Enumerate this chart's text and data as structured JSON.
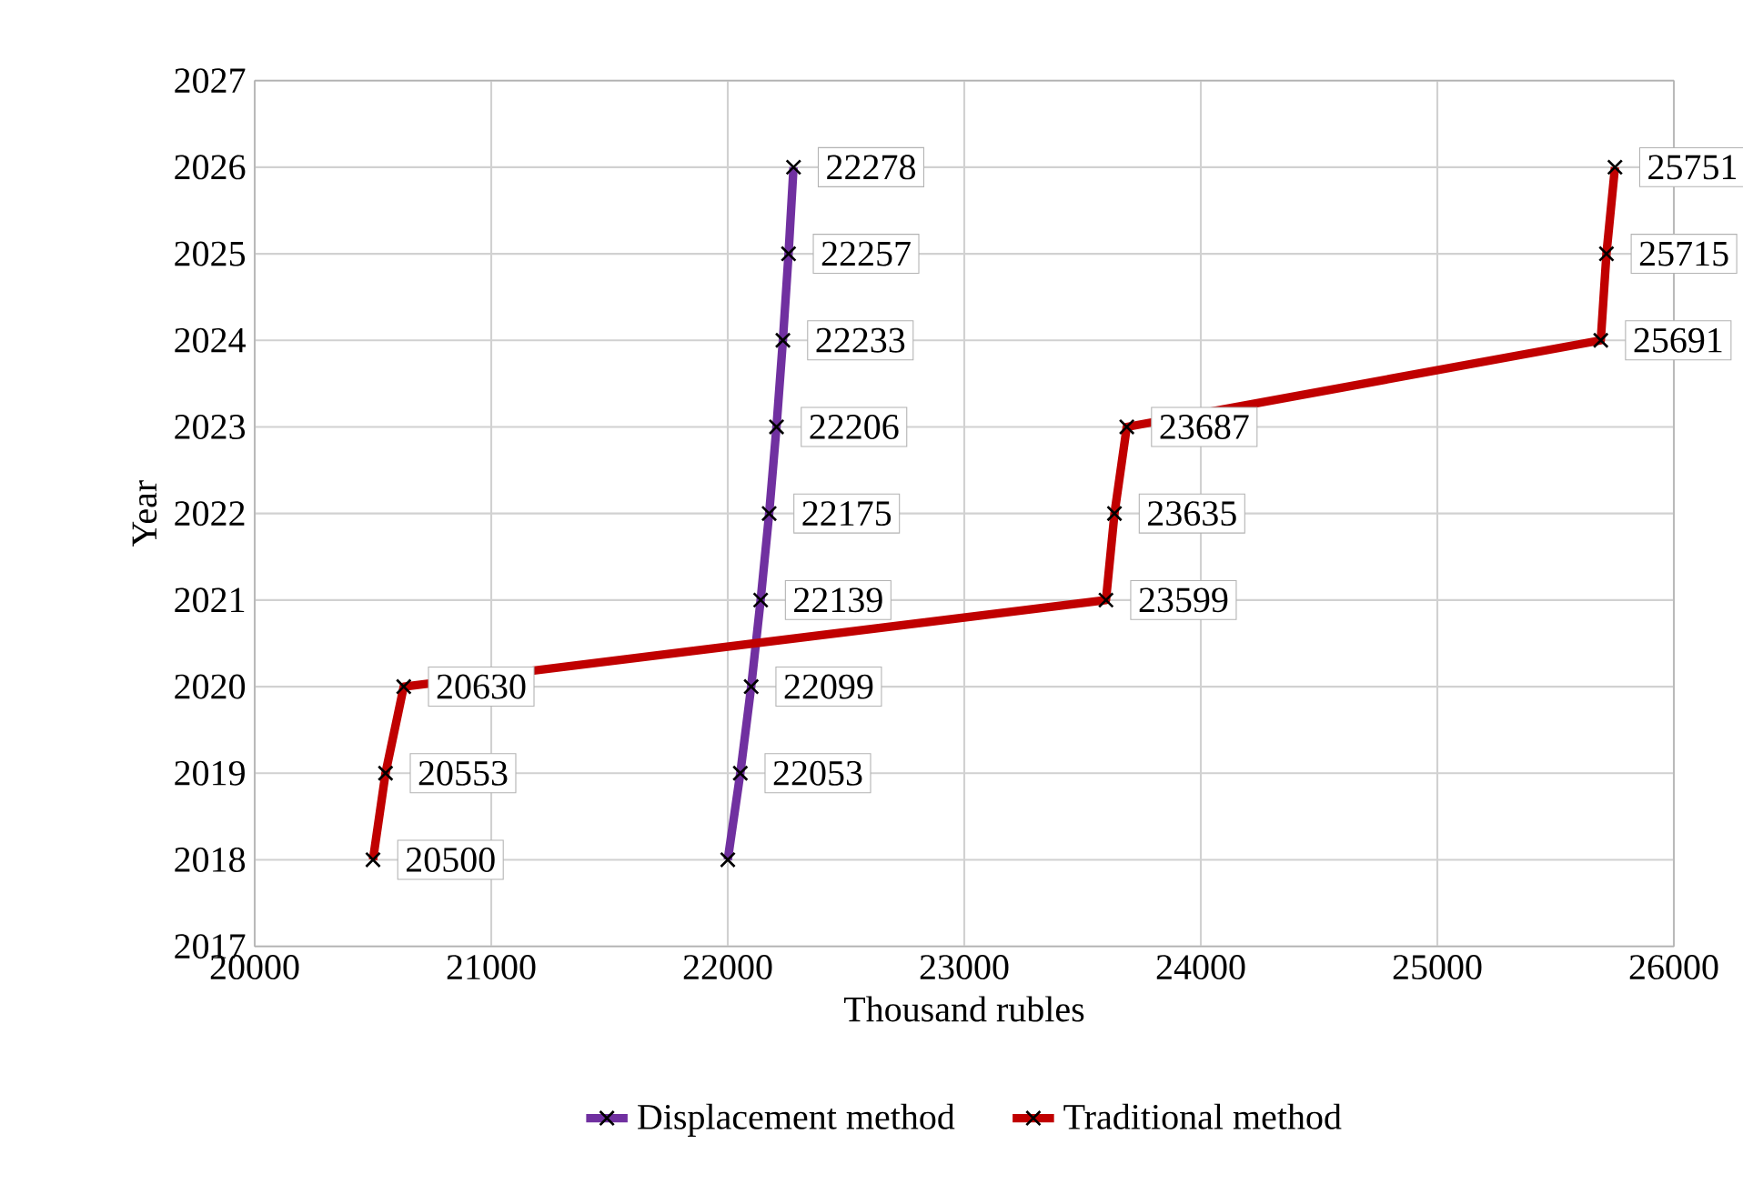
{
  "chart_data": {
    "type": "line",
    "orientation": "horizontal",
    "xlabel": "Thousand rubles",
    "ylabel": "Year",
    "xlim": [
      20000,
      26000
    ],
    "xticks": [
      20000,
      21000,
      22000,
      23000,
      24000,
      25000,
      26000
    ],
    "ylim": [
      2017,
      2027
    ],
    "yticks": [
      2017,
      2018,
      2019,
      2020,
      2021,
      2022,
      2023,
      2024,
      2025,
      2026,
      2027
    ],
    "grid": true,
    "legend": "bottom",
    "marker": "cross",
    "line_style": "solid",
    "series": [
      {
        "name": "Displacement method",
        "color": "#7030a0",
        "x": [
          2018,
          2019,
          2020,
          2021,
          2022,
          2023,
          2024,
          2025,
          2026
        ],
        "values": [
          22000,
          22053,
          22099,
          22139,
          22175,
          22206,
          22233,
          22257,
          22278
        ],
        "value_labels": [
          null,
          "22053",
          "22099",
          "22139",
          "22175",
          "22206",
          "22233",
          "22257",
          "22278"
        ]
      },
      {
        "name": "Traditional method",
        "color": "#c00000",
        "x": [
          2018,
          2019,
          2020,
          2021,
          2022,
          2023,
          2024,
          2025,
          2026
        ],
        "values": [
          20500,
          20553,
          20630,
          23599,
          23635,
          23687,
          25691,
          25715,
          25751
        ],
        "value_labels": [
          "20500",
          "20553",
          "20630",
          "23599",
          "23635",
          "23687",
          "25691",
          "25715",
          "25751"
        ]
      }
    ]
  }
}
